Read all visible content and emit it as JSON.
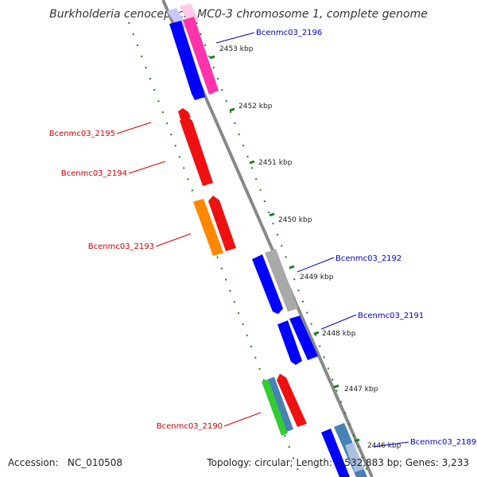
{
  "title": "Burkholderia cenocepacia MC0-3 chromosome 1, complete genome",
  "footer": {
    "accession_label": "Accession:",
    "accession_value": "NC_010508",
    "topology_label": "Topology:",
    "topology_value": "circular",
    "length_label": "Length:",
    "length_value": "3,532,883 bp",
    "genes_label": "Genes:",
    "genes_value": "3,233"
  },
  "colors": {
    "backbone": "#888888",
    "tick": "#1a7f1a",
    "forward_label": "#0000cc",
    "reverse_label": "#cc0000",
    "blue": "#0000ff",
    "pink": "#ff33aa",
    "red": "#ee1111",
    "orange": "#ff8800",
    "grey": "#a9a9a9",
    "green": "#33cc33",
    "steel": "#4682b4"
  },
  "ruler": [
    {
      "label": "2453 kbp"
    },
    {
      "label": "2452 kbp"
    },
    {
      "label": "2451 kbp"
    },
    {
      "label": "2450 kbp"
    },
    {
      "label": "2449 kbp"
    },
    {
      "label": "2448 kbp"
    },
    {
      "label": "2447 kbp"
    },
    {
      "label": "2446 kbp"
    }
  ],
  "genes": [
    {
      "id": "Bcenmc03_2196",
      "strand": "forward"
    },
    {
      "id": "Bcenmc03_2195",
      "strand": "reverse"
    },
    {
      "id": "Bcenmc03_2194",
      "strand": "reverse"
    },
    {
      "id": "Bcenmc03_2193",
      "strand": "reverse"
    },
    {
      "id": "Bcenmc03_2192",
      "strand": "forward"
    },
    {
      "id": "Bcenmc03_2191",
      "strand": "forward"
    },
    {
      "id": "Bcenmc03_2190",
      "strand": "reverse"
    },
    {
      "id": "Bcenmc03_2189",
      "strand": "forward"
    }
  ]
}
